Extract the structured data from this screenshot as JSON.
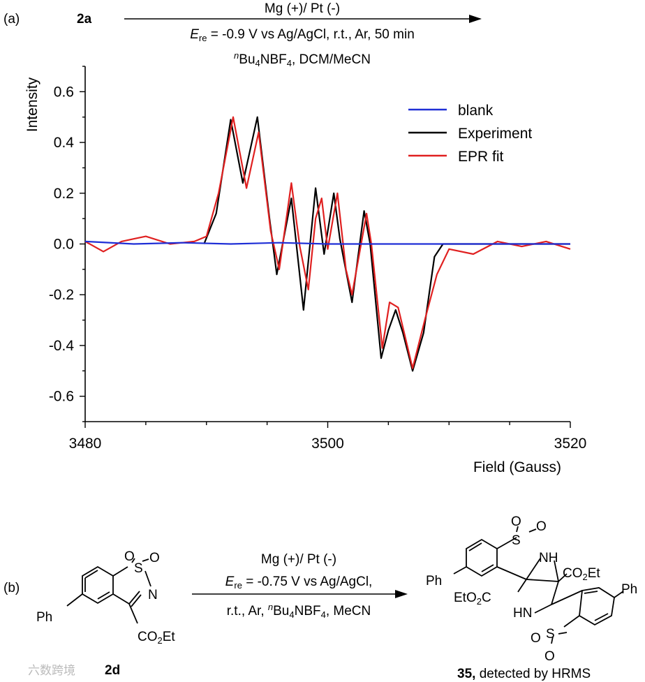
{
  "panel_a": {
    "label": "(a)",
    "compound": "2a",
    "conditions": {
      "line1": "Mg (+)/ Pt (-)",
      "line2_E": "E",
      "line2_sub": "re",
      "line2_rest": " = -0.9 V vs Ag/AgCl, r.t., Ar, 50 min",
      "line3_sup": "n",
      "line3_a": "Bu",
      "line3_sub1": "4",
      "line3_b": "NBF",
      "line3_sub2": "4",
      "line3_c": ", DCM/MeCN"
    }
  },
  "panel_b": {
    "label": "(b)",
    "reactant": {
      "id": "2d",
      "ph": "Ph",
      "n": "N",
      "s": "S",
      "o1": "O",
      "o2": "O",
      "ester_a": "CO",
      "ester_sub": "2",
      "ester_b": "Et"
    },
    "conditions": {
      "line1": "Mg (+)/ Pt (-)",
      "line2_E": "E",
      "line2_sub": "re",
      "line2_rest": " = -0.75 V vs Ag/AgCl,",
      "line3_a": "r.t., Ar, ",
      "line3_sup": "n",
      "line3_b": "Bu",
      "line3_sub1": "4",
      "line3_c": "NBF",
      "line3_sub2": "4",
      "line3_d": ", MeCN"
    },
    "product": {
      "id": "35,",
      "note": " detected by HRMS",
      "ph": "Ph",
      "nh": "NH",
      "hn": "HN",
      "s": "S",
      "o": "O",
      "ester_a": "CO",
      "ester_sub": "2",
      "ester_b": "Et",
      "ester2_a": "EtO",
      "ester2_sub": "2",
      "ester2_b": "C"
    }
  },
  "watermark": "六数跨境",
  "chart_data": {
    "type": "line",
    "title": "",
    "xlabel": "Field (Gauss)",
    "ylabel": "Intensity",
    "xlim": [
      3480,
      3520
    ],
    "ylim": [
      -0.7,
      0.7
    ],
    "xticks": [
      "3480",
      "3500",
      "3520"
    ],
    "yticks": [
      "0.6",
      "0.4",
      "0.2",
      "0.0",
      "-0.2",
      "-0.4",
      "-0.6"
    ],
    "legend_position": "top-right",
    "colors": {
      "blank": "#1f2fd6",
      "experiment": "#000000",
      "fit": "#e02020"
    },
    "series": [
      {
        "name": "blank",
        "x": [
          3480,
          3484,
          3488,
          3492,
          3496,
          3500,
          3504,
          3508,
          3512,
          3516,
          3520
        ],
        "y": [
          0.01,
          0.0,
          0.005,
          0.0,
          0.005,
          0.0,
          0.0,
          0.0,
          0.0,
          0.0,
          0.0
        ]
      },
      {
        "name": "Experiment",
        "x": [
          3489.8,
          3490.8,
          3492.0,
          3493.0,
          3494.2,
          3495.2,
          3495.8,
          3497.0,
          3498.0,
          3499.0,
          3499.7,
          3500.5,
          3501.0,
          3502.0,
          3503.0,
          3503.5,
          3504.4,
          3505.0,
          3505.6,
          3506.2,
          3507.0,
          3507.9,
          3508.8,
          3509.5,
          3512.0,
          3520.0
        ],
        "y": [
          0.0,
          0.12,
          0.49,
          0.24,
          0.5,
          0.1,
          -0.12,
          0.18,
          -0.26,
          0.22,
          -0.04,
          0.2,
          0.02,
          -0.23,
          0.13,
          0.0,
          -0.45,
          -0.34,
          -0.26,
          -0.35,
          -0.5,
          -0.35,
          -0.05,
          0.0,
          0.0,
          0.0
        ]
      },
      {
        "name": "EPR fit",
        "x": [
          3480,
          3481.5,
          3483,
          3484,
          3485,
          3487,
          3489,
          3490,
          3491,
          3492.2,
          3493.3,
          3494.3,
          3495.3,
          3496.0,
          3497.0,
          3497.7,
          3498.4,
          3499.0,
          3499.5,
          3500.0,
          3500.8,
          3501.5,
          3502.0,
          3503.2,
          3503.6,
          3504.5,
          3505.1,
          3505.8,
          3506.3,
          3507.0,
          3508.0,
          3509.0,
          3510.0,
          3512,
          3514,
          3516,
          3518,
          3520
        ],
        "y": [
          0.01,
          -0.03,
          0.01,
          0.02,
          0.03,
          0.0,
          0.01,
          0.03,
          0.2,
          0.5,
          0.22,
          0.44,
          0.05,
          -0.1,
          0.24,
          -0.01,
          -0.18,
          0.1,
          0.18,
          -0.02,
          0.2,
          -0.1,
          -0.2,
          0.12,
          0.0,
          -0.41,
          -0.23,
          -0.25,
          -0.35,
          -0.49,
          -0.3,
          -0.12,
          -0.02,
          -0.04,
          0.01,
          -0.01,
          0.01,
          -0.02
        ]
      }
    ]
  }
}
